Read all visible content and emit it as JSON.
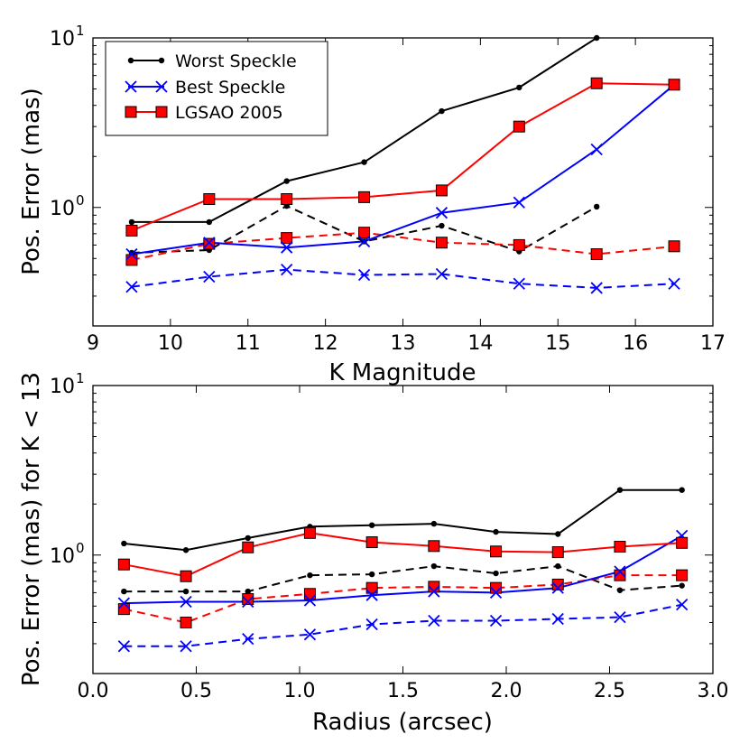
{
  "chart_data": [
    {
      "type": "line",
      "yscale": "log",
      "xlabel": "K Magnitude",
      "ylabel": "Pos. Error (mas)",
      "xlim": [
        9,
        17
      ],
      "ylim": [
        0.2,
        10
      ],
      "xticks": [
        "9",
        "10",
        "11",
        "12",
        "13",
        "14",
        "15",
        "16",
        "17"
      ],
      "yticks": [
        {
          "value": 1,
          "base": "10",
          "exp": "0"
        },
        {
          "value": 10,
          "base": "10",
          "exp": "1"
        }
      ],
      "legend": {
        "placement": "top-left",
        "entries": [
          "Worst Speckle",
          "Best Speckle",
          "LGSAO 2005"
        ]
      },
      "series": [
        {
          "name": "Worst Speckle",
          "style": "solid",
          "color": "#000000",
          "marker": "dot",
          "x": [
            9.5,
            10.5,
            11.5,
            12.5,
            13.5,
            14.5,
            15.5
          ],
          "y": [
            0.82,
            0.82,
            1.43,
            1.85,
            3.7,
            5.1,
            10.0
          ]
        },
        {
          "name": "Best Speckle",
          "style": "solid",
          "color": "#0000ff",
          "marker": "x",
          "x": [
            9.5,
            10.5,
            11.5,
            12.5,
            13.5,
            14.5,
            15.5,
            16.5
          ],
          "y": [
            0.53,
            0.62,
            0.58,
            0.63,
            0.93,
            1.07,
            2.2,
            5.3
          ]
        },
        {
          "name": "LGSAO 2005",
          "style": "solid",
          "color": "#ff0000",
          "marker": "square",
          "x": [
            9.5,
            10.5,
            11.5,
            12.5,
            13.5,
            14.5,
            15.5,
            16.5
          ],
          "y": [
            0.73,
            1.12,
            1.12,
            1.15,
            1.26,
            3.0,
            5.4,
            5.3
          ]
        },
        {
          "name": "Worst Speckle (dashed)",
          "style": "dashed",
          "color": "#000000",
          "marker": "dot",
          "x": [
            9.5,
            10.5,
            11.5,
            12.5,
            13.5,
            14.5,
            15.5
          ],
          "y": [
            0.54,
            0.56,
            1.02,
            0.63,
            0.78,
            0.55,
            1.01
          ]
        },
        {
          "name": "Best Speckle (dashed)",
          "style": "dashed",
          "color": "#0000ff",
          "marker": "x",
          "x": [
            9.5,
            10.5,
            11.5,
            12.5,
            13.5,
            14.5,
            15.5,
            16.5
          ],
          "y": [
            0.34,
            0.39,
            0.43,
            0.4,
            0.405,
            0.355,
            0.335,
            0.355
          ]
        },
        {
          "name": "LGSAO 2005 (dashed)",
          "style": "dashed",
          "color": "#ff0000",
          "marker": "square",
          "x": [
            9.5,
            10.5,
            11.5,
            12.5,
            13.5,
            14.5,
            15.5,
            16.5
          ],
          "y": [
            0.49,
            0.61,
            0.66,
            0.71,
            0.62,
            0.6,
            0.53,
            0.59
          ]
        }
      ]
    },
    {
      "type": "line",
      "yscale": "log",
      "xlabel": "Radius (arcsec)",
      "ylabel": "Pos. Error (mas) for K < 13",
      "xlim": [
        0.0,
        3.0
      ],
      "ylim": [
        0.2,
        10
      ],
      "xticks": [
        "0.0",
        "0.5",
        "1.0",
        "1.5",
        "2.0",
        "2.5",
        "3.0"
      ],
      "yticks": [
        {
          "value": 1,
          "base": "10",
          "exp": "0"
        },
        {
          "value": 10,
          "base": "10",
          "exp": "1"
        }
      ],
      "series": [
        {
          "name": "Worst Speckle",
          "style": "solid",
          "color": "#000000",
          "marker": "dot",
          "x": [
            0.15,
            0.45,
            0.75,
            1.05,
            1.35,
            1.65,
            1.95,
            2.25,
            2.55,
            2.85
          ],
          "y": [
            1.17,
            1.07,
            1.26,
            1.47,
            1.5,
            1.53,
            1.37,
            1.33,
            2.42,
            2.42
          ]
        },
        {
          "name": "Best Speckle",
          "style": "solid",
          "color": "#0000ff",
          "marker": "x",
          "x": [
            0.15,
            0.45,
            0.75,
            1.05,
            1.35,
            1.65,
            1.95,
            2.25,
            2.55,
            2.85
          ],
          "y": [
            0.52,
            0.53,
            0.53,
            0.54,
            0.58,
            0.61,
            0.6,
            0.64,
            0.8,
            1.3
          ]
        },
        {
          "name": "LGSAO 2005",
          "style": "solid",
          "color": "#ff0000",
          "marker": "square",
          "x": [
            0.15,
            0.45,
            0.75,
            1.05,
            1.35,
            1.65,
            1.95,
            2.25,
            2.55,
            2.85
          ],
          "y": [
            0.88,
            0.75,
            1.11,
            1.35,
            1.19,
            1.13,
            1.05,
            1.04,
            1.12,
            1.18
          ]
        },
        {
          "name": "Worst Speckle (dashed)",
          "style": "dashed",
          "color": "#000000",
          "marker": "dot",
          "x": [
            0.15,
            0.45,
            0.75,
            1.05,
            1.35,
            1.65,
            1.95,
            2.25,
            2.55,
            2.85
          ],
          "y": [
            0.61,
            0.61,
            0.61,
            0.76,
            0.77,
            0.86,
            0.78,
            0.86,
            0.62,
            0.66
          ]
        },
        {
          "name": "Best Speckle (dashed)",
          "style": "dashed",
          "color": "#0000ff",
          "marker": "x",
          "x": [
            0.15,
            0.45,
            0.75,
            1.05,
            1.35,
            1.65,
            1.95,
            2.25,
            2.55,
            2.85
          ],
          "y": [
            0.29,
            0.29,
            0.32,
            0.34,
            0.39,
            0.41,
            0.41,
            0.42,
            0.43,
            0.51
          ]
        },
        {
          "name": "LGSAO 2005 (dashed)",
          "style": "dashed",
          "color": "#ff0000",
          "marker": "square",
          "x": [
            0.15,
            0.45,
            0.75,
            1.05,
            1.35,
            1.65,
            1.95,
            2.25,
            2.55,
            2.85
          ],
          "y": [
            0.48,
            0.4,
            0.55,
            0.59,
            0.64,
            0.65,
            0.64,
            0.67,
            0.76,
            0.76
          ]
        }
      ]
    }
  ]
}
